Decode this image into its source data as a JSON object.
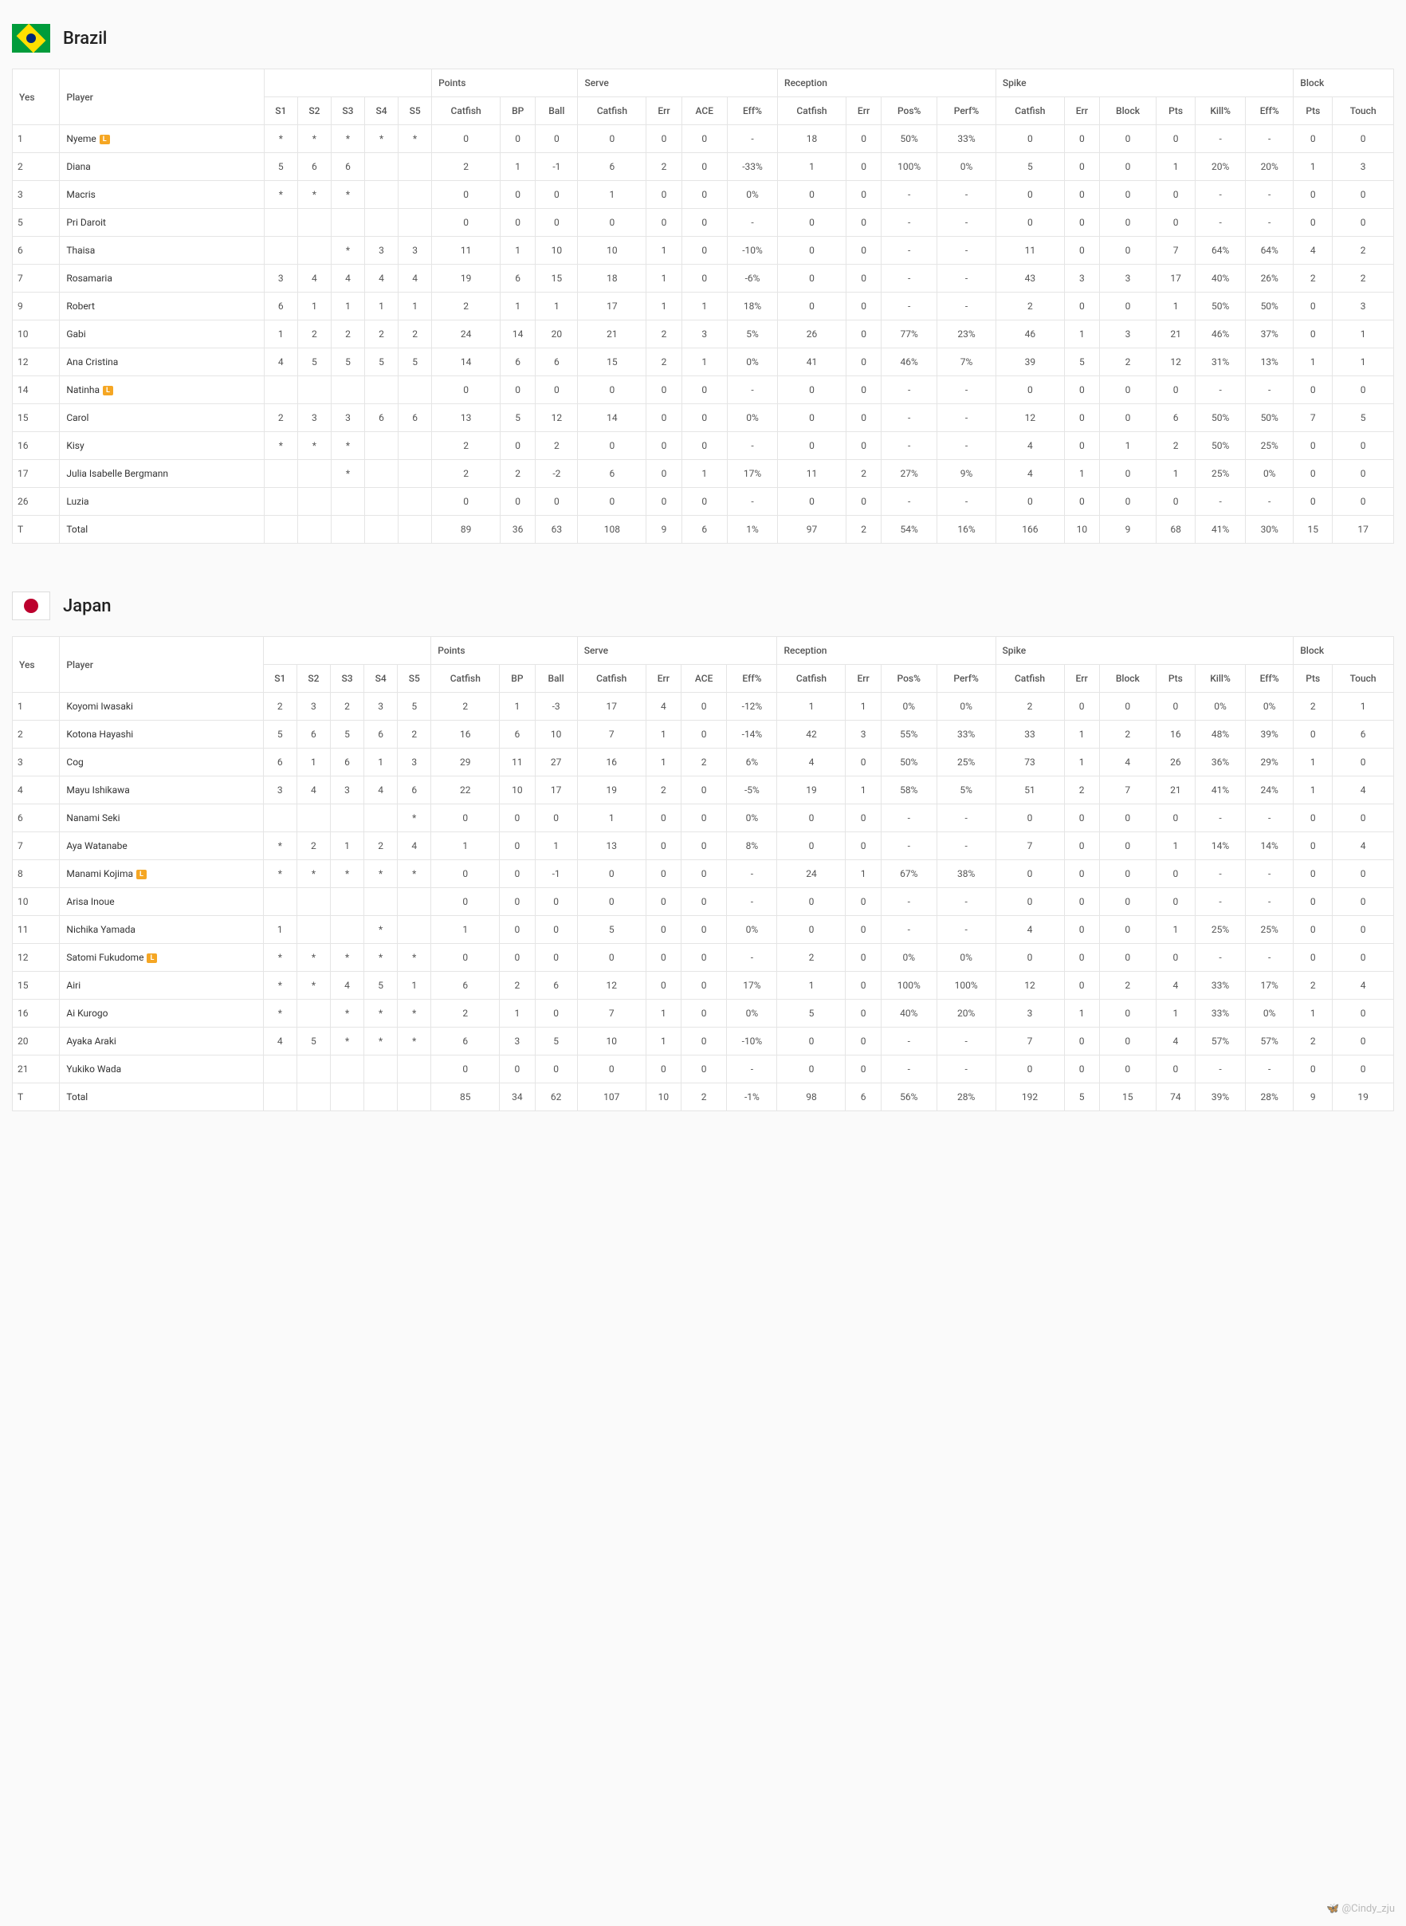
{
  "watermark": "🦋 @Cindy_zju",
  "col_groups": [
    {
      "label": "",
      "cols": [
        "S1",
        "S2",
        "S3",
        "S4",
        "S5"
      ]
    },
    {
      "label": "Points",
      "cols": [
        "Catfish",
        "BP",
        "Ball"
      ]
    },
    {
      "label": "Serve",
      "cols": [
        "Catfish",
        "Err",
        "ACE",
        "Eff%"
      ]
    },
    {
      "label": "Reception",
      "cols": [
        "Catfish",
        "Err",
        "Pos%",
        "Perf%"
      ]
    },
    {
      "label": "Spike",
      "cols": [
        "Catfish",
        "Err",
        "Block",
        "Pts",
        "Kill%",
        "Eff%"
      ]
    },
    {
      "label": "Block",
      "cols": [
        "Pts",
        "Touch"
      ]
    }
  ],
  "header_left": {
    "yes": "Yes",
    "player": "Player"
  },
  "teams": [
    {
      "name": "Brazil",
      "flag": "brazil",
      "players": [
        {
          "num": "1",
          "name": "Nyeme",
          "libero": true,
          "cells": [
            "*",
            "*",
            "*",
            "*",
            "*",
            "0",
            "0",
            "0",
            "0",
            "0",
            "0",
            "-",
            "18",
            "0",
            "50%",
            "33%",
            "0",
            "0",
            "0",
            "0",
            "-",
            "-",
            "0",
            "0"
          ]
        },
        {
          "num": "2",
          "name": "Diana",
          "libero": false,
          "cells": [
            "5",
            "6",
            "6",
            "",
            "",
            "2",
            "1",
            "-1",
            "6",
            "2",
            "0",
            "-33%",
            "1",
            "0",
            "100%",
            "0%",
            "5",
            "0",
            "0",
            "1",
            "20%",
            "20%",
            "1",
            "3"
          ]
        },
        {
          "num": "3",
          "name": "Macris",
          "libero": false,
          "cells": [
            "*",
            "*",
            "*",
            "",
            "",
            "0",
            "0",
            "0",
            "1",
            "0",
            "0",
            "0%",
            "0",
            "0",
            "-",
            "-",
            "0",
            "0",
            "0",
            "0",
            "-",
            "-",
            "0",
            "0"
          ]
        },
        {
          "num": "5",
          "name": "Pri Daroit",
          "libero": false,
          "cells": [
            "",
            "",
            "",
            "",
            "",
            "0",
            "0",
            "0",
            "0",
            "0",
            "0",
            "-",
            "0",
            "0",
            "-",
            "-",
            "0",
            "0",
            "0",
            "0",
            "-",
            "-",
            "0",
            "0"
          ]
        },
        {
          "num": "6",
          "name": "Thaisa",
          "libero": false,
          "cells": [
            "",
            "",
            "*",
            "3",
            "3",
            "11",
            "1",
            "10",
            "10",
            "1",
            "0",
            "-10%",
            "0",
            "0",
            "-",
            "-",
            "11",
            "0",
            "0",
            "7",
            "64%",
            "64%",
            "4",
            "2"
          ]
        },
        {
          "num": "7",
          "name": "Rosamaria",
          "libero": false,
          "cells": [
            "3",
            "4",
            "4",
            "4",
            "4",
            "19",
            "6",
            "15",
            "18",
            "1",
            "0",
            "-6%",
            "0",
            "0",
            "-",
            "-",
            "43",
            "3",
            "3",
            "17",
            "40%",
            "26%",
            "2",
            "2"
          ]
        },
        {
          "num": "9",
          "name": "Robert",
          "libero": false,
          "cells": [
            "6",
            "1",
            "1",
            "1",
            "1",
            "2",
            "1",
            "1",
            "17",
            "1",
            "1",
            "18%",
            "0",
            "0",
            "-",
            "-",
            "2",
            "0",
            "0",
            "1",
            "50%",
            "50%",
            "0",
            "3"
          ]
        },
        {
          "num": "10",
          "name": "Gabi",
          "libero": false,
          "cells": [
            "1",
            "2",
            "2",
            "2",
            "2",
            "24",
            "14",
            "20",
            "21",
            "2",
            "3",
            "5%",
            "26",
            "0",
            "77%",
            "23%",
            "46",
            "1",
            "3",
            "21",
            "46%",
            "37%",
            "0",
            "1"
          ]
        },
        {
          "num": "12",
          "name": "Ana Cristina",
          "libero": false,
          "cells": [
            "4",
            "5",
            "5",
            "5",
            "5",
            "14",
            "6",
            "6",
            "15",
            "2",
            "1",
            "0%",
            "41",
            "0",
            "46%",
            "7%",
            "39",
            "5",
            "2",
            "12",
            "31%",
            "13%",
            "1",
            "1"
          ]
        },
        {
          "num": "14",
          "name": "Natinha",
          "libero": true,
          "cells": [
            "",
            "",
            "",
            "",
            "",
            "0",
            "0",
            "0",
            "0",
            "0",
            "0",
            "-",
            "0",
            "0",
            "-",
            "-",
            "0",
            "0",
            "0",
            "0",
            "-",
            "-",
            "0",
            "0"
          ]
        },
        {
          "num": "15",
          "name": "Carol",
          "libero": false,
          "cells": [
            "2",
            "3",
            "3",
            "6",
            "6",
            "13",
            "5",
            "12",
            "14",
            "0",
            "0",
            "0%",
            "0",
            "0",
            "-",
            "-",
            "12",
            "0",
            "0",
            "6",
            "50%",
            "50%",
            "7",
            "5"
          ]
        },
        {
          "num": "16",
          "name": "Kisy",
          "libero": false,
          "cells": [
            "*",
            "*",
            "*",
            "",
            "",
            "2",
            "0",
            "2",
            "0",
            "0",
            "0",
            "-",
            "0",
            "0",
            "-",
            "-",
            "4",
            "0",
            "1",
            "2",
            "50%",
            "25%",
            "0",
            "0"
          ]
        },
        {
          "num": "17",
          "name": "Julia Isabelle Bergmann",
          "libero": false,
          "cells": [
            "",
            "",
            "*",
            "",
            "",
            "2",
            "2",
            "-2",
            "6",
            "0",
            "1",
            "17%",
            "11",
            "2",
            "27%",
            "9%",
            "4",
            "1",
            "0",
            "1",
            "25%",
            "0%",
            "0",
            "0"
          ]
        },
        {
          "num": "26",
          "name": "Luzia",
          "libero": false,
          "cells": [
            "",
            "",
            "",
            "",
            "",
            "0",
            "0",
            "0",
            "0",
            "0",
            "0",
            "-",
            "0",
            "0",
            "-",
            "-",
            "0",
            "0",
            "0",
            "0",
            "-",
            "-",
            "0",
            "0"
          ]
        },
        {
          "num": "T",
          "name": "Total",
          "libero": false,
          "cells": [
            "",
            "",
            "",
            "",
            "",
            "89",
            "36",
            "63",
            "108",
            "9",
            "6",
            "1%",
            "97",
            "2",
            "54%",
            "16%",
            "166",
            "10",
            "9",
            "68",
            "41%",
            "30%",
            "15",
            "17"
          ]
        }
      ]
    },
    {
      "name": "Japan",
      "flag": "japan",
      "players": [
        {
          "num": "1",
          "name": "Koyomi Iwasaki",
          "libero": false,
          "cells": [
            "2",
            "3",
            "2",
            "3",
            "5",
            "2",
            "1",
            "-3",
            "17",
            "4",
            "0",
            "-12%",
            "1",
            "1",
            "0%",
            "0%",
            "2",
            "0",
            "0",
            "0",
            "0%",
            "0%",
            "2",
            "1"
          ]
        },
        {
          "num": "2",
          "name": "Kotona Hayashi",
          "libero": false,
          "cells": [
            "5",
            "6",
            "5",
            "6",
            "2",
            "16",
            "6",
            "10",
            "7",
            "1",
            "0",
            "-14%",
            "42",
            "3",
            "55%",
            "33%",
            "33",
            "1",
            "2",
            "16",
            "48%",
            "39%",
            "0",
            "6"
          ]
        },
        {
          "num": "3",
          "name": "Cog",
          "libero": false,
          "cells": [
            "6",
            "1",
            "6",
            "1",
            "3",
            "29",
            "11",
            "27",
            "16",
            "1",
            "2",
            "6%",
            "4",
            "0",
            "50%",
            "25%",
            "73",
            "1",
            "4",
            "26",
            "36%",
            "29%",
            "1",
            "0"
          ]
        },
        {
          "num": "4",
          "name": "Mayu Ishikawa",
          "libero": false,
          "cells": [
            "3",
            "4",
            "3",
            "4",
            "6",
            "22",
            "10",
            "17",
            "19",
            "2",
            "0",
            "-5%",
            "19",
            "1",
            "58%",
            "5%",
            "51",
            "2",
            "7",
            "21",
            "41%",
            "24%",
            "1",
            "4"
          ]
        },
        {
          "num": "6",
          "name": "Nanami Seki",
          "libero": false,
          "cells": [
            "",
            "",
            "",
            "",
            "*",
            "0",
            "0",
            "0",
            "1",
            "0",
            "0",
            "0%",
            "0",
            "0",
            "-",
            "-",
            "0",
            "0",
            "0",
            "0",
            "-",
            "-",
            "0",
            "0"
          ]
        },
        {
          "num": "7",
          "name": "Aya Watanabe",
          "libero": false,
          "cells": [
            "*",
            "2",
            "1",
            "2",
            "4",
            "1",
            "0",
            "1",
            "13",
            "0",
            "0",
            "8%",
            "0",
            "0",
            "-",
            "-",
            "7",
            "0",
            "0",
            "1",
            "14%",
            "14%",
            "0",
            "4"
          ]
        },
        {
          "num": "8",
          "name": "Manami Kojima",
          "libero": true,
          "cells": [
            "*",
            "*",
            "*",
            "*",
            "*",
            "0",
            "0",
            "-1",
            "0",
            "0",
            "0",
            "-",
            "24",
            "1",
            "67%",
            "38%",
            "0",
            "0",
            "0",
            "0",
            "-",
            "-",
            "0",
            "0"
          ]
        },
        {
          "num": "10",
          "name": "Arisa Inoue",
          "libero": false,
          "cells": [
            "",
            "",
            "",
            "",
            "",
            "0",
            "0",
            "0",
            "0",
            "0",
            "0",
            "-",
            "0",
            "0",
            "-",
            "-",
            "0",
            "0",
            "0",
            "0",
            "-",
            "-",
            "0",
            "0"
          ]
        },
        {
          "num": "11",
          "name": "Nichika Yamada",
          "libero": false,
          "cells": [
            "1",
            "",
            "",
            "*",
            "",
            "1",
            "0",
            "0",
            "5",
            "0",
            "0",
            "0%",
            "0",
            "0",
            "-",
            "-",
            "4",
            "0",
            "0",
            "1",
            "25%",
            "25%",
            "0",
            "0"
          ]
        },
        {
          "num": "12",
          "name": "Satomi Fukudome",
          "libero": true,
          "cells": [
            "*",
            "*",
            "*",
            "*",
            "*",
            "0",
            "0",
            "0",
            "0",
            "0",
            "0",
            "-",
            "2",
            "0",
            "0%",
            "0%",
            "0",
            "0",
            "0",
            "0",
            "-",
            "-",
            "0",
            "0"
          ]
        },
        {
          "num": "15",
          "name": "Airi",
          "libero": false,
          "cells": [
            "*",
            "*",
            "4",
            "5",
            "1",
            "6",
            "2",
            "6",
            "12",
            "0",
            "0",
            "17%",
            "1",
            "0",
            "100%",
            "100%",
            "12",
            "0",
            "2",
            "4",
            "33%",
            "17%",
            "2",
            "4"
          ]
        },
        {
          "num": "16",
          "name": "Ai Kurogo",
          "libero": false,
          "cells": [
            "*",
            "",
            "*",
            "*",
            "*",
            "2",
            "1",
            "0",
            "7",
            "1",
            "0",
            "0%",
            "5",
            "0",
            "40%",
            "20%",
            "3",
            "1",
            "0",
            "1",
            "33%",
            "0%",
            "1",
            "0"
          ]
        },
        {
          "num": "20",
          "name": "Ayaka Araki",
          "libero": false,
          "cells": [
            "4",
            "5",
            "*",
            "*",
            "*",
            "6",
            "3",
            "5",
            "10",
            "1",
            "0",
            "-10%",
            "0",
            "0",
            "-",
            "-",
            "7",
            "0",
            "0",
            "4",
            "57%",
            "57%",
            "2",
            "0"
          ]
        },
        {
          "num": "21",
          "name": "Yukiko Wada",
          "libero": false,
          "cells": [
            "",
            "",
            "",
            "",
            "",
            "0",
            "0",
            "0",
            "0",
            "0",
            "0",
            "-",
            "0",
            "0",
            "-",
            "-",
            "0",
            "0",
            "0",
            "0",
            "-",
            "-",
            "0",
            "0"
          ]
        },
        {
          "num": "T",
          "name": "Total",
          "libero": false,
          "cells": [
            "",
            "",
            "",
            "",
            "",
            "85",
            "34",
            "62",
            "107",
            "10",
            "2",
            "-1%",
            "98",
            "6",
            "56%",
            "28%",
            "192",
            "5",
            "15",
            "74",
            "39%",
            "28%",
            "9",
            "19"
          ]
        }
      ]
    }
  ]
}
